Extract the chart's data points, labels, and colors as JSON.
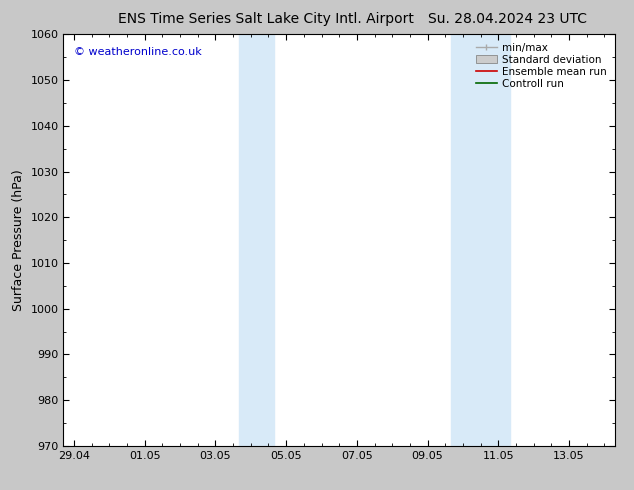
{
  "title_left": "ENS Time Series Salt Lake City Intl. Airport",
  "title_right": "Su. 28.04.2024 23 UTC",
  "ylabel": "Surface Pressure (hPa)",
  "watermark": "© weatheronline.co.uk",
  "ylim": [
    970,
    1060
  ],
  "yticks": [
    970,
    980,
    990,
    1000,
    1010,
    1020,
    1030,
    1040,
    1050,
    1060
  ],
  "xtick_labels": [
    "29.04",
    "01.05",
    "03.05",
    "05.05",
    "07.05",
    "09.05",
    "11.05",
    "13.05"
  ],
  "xtick_positions": [
    0,
    2,
    4,
    6,
    8,
    10,
    12,
    14
  ],
  "xlim": [
    -0.3,
    15.3
  ],
  "shaded_bands": [
    {
      "xmin": 4.67,
      "xmax": 5.67
    },
    {
      "xmin": 10.67,
      "xmax": 12.33
    }
  ],
  "background_color": "#c8c8c8",
  "plot_bg_color": "#ffffff",
  "shade_color": "#d8eaf8",
  "legend_items": [
    {
      "label": "min/max",
      "color": "#aaaaaa",
      "type": "errorbar"
    },
    {
      "label": "Standard deviation",
      "color": "#cccccc",
      "type": "box"
    },
    {
      "label": "Ensemble mean run",
      "color": "#cc0000",
      "type": "line"
    },
    {
      "label": "Controll run",
      "color": "#006600",
      "type": "line"
    }
  ],
  "title_fontsize": 10,
  "tick_fontsize": 8,
  "legend_fontsize": 7.5,
  "ylabel_fontsize": 9
}
